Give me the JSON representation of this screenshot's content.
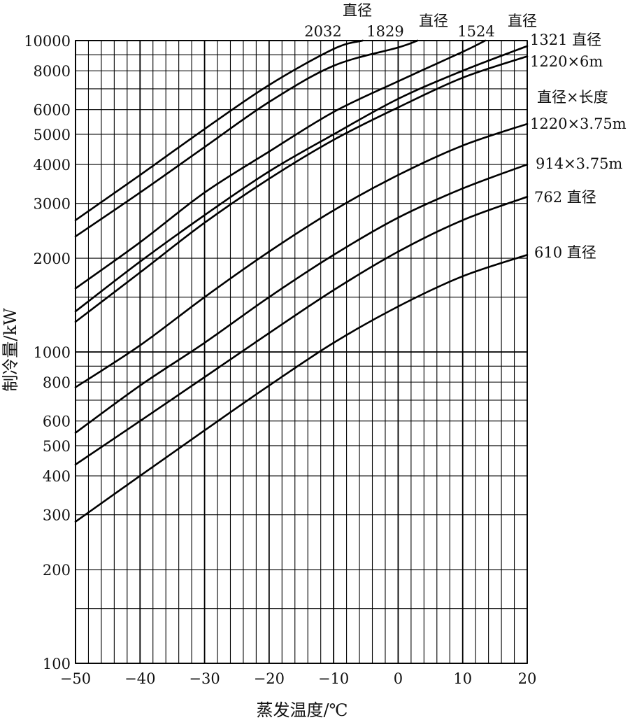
{
  "chart_data": {
    "type": "line",
    "title": "",
    "xlabel": "蒸发温度/℃",
    "ylabel": "制冷量/kW",
    "xlim": [
      -50,
      20
    ],
    "ylim": [
      100,
      10000
    ],
    "yscale": "log",
    "grid": true,
    "x_ticks": [
      -50,
      -40,
      -30,
      -20,
      -10,
      0,
      10,
      20
    ],
    "x_tick_labels": [
      "−50",
      "−40",
      "−30",
      "−20",
      "−10",
      "0",
      "10",
      "20"
    ],
    "y_ticks": [
      100,
      200,
      300,
      400,
      500,
      600,
      800,
      1000,
      2000,
      3000,
      4000,
      5000,
      6000,
      8000,
      10000
    ],
    "y_tick_labels": [
      "100",
      "200",
      "300",
      "400",
      "500",
      "600",
      "800",
      "1000",
      "2000",
      "3000",
      "4000",
      "5000",
      "6000",
      "8000",
      "10000"
    ],
    "legend_note": "直径×长度",
    "series": [
      {
        "name": "2032 直径",
        "x": [
          -50,
          -40,
          -30,
          -20,
          -10,
          -5.5
        ],
        "y": [
          2650,
          3700,
          5200,
          7200,
          9400,
          10000
        ]
      },
      {
        "name": "1829 直径",
        "x": [
          -50,
          -40,
          -30,
          -20,
          -10,
          0,
          3
        ],
        "y": [
          2350,
          3250,
          4550,
          6350,
          8300,
          9500,
          10000
        ]
      },
      {
        "name": "1524 直径",
        "x": [
          -50,
          -40,
          -30,
          -20,
          -10,
          0,
          10,
          13.5
        ],
        "y": [
          1600,
          2250,
          3250,
          4400,
          5900,
          7400,
          9200,
          10000
        ]
      },
      {
        "name": "1321 直径",
        "x": [
          -50,
          -40,
          -30,
          -20,
          -10,
          0,
          10,
          20
        ],
        "y": [
          1350,
          1950,
          2750,
          3800,
          5000,
          6500,
          8000,
          9600
        ]
      },
      {
        "name": "1220×6m",
        "x": [
          -50,
          -40,
          -30,
          -20,
          -10,
          0,
          10,
          20
        ],
        "y": [
          1250,
          1800,
          2600,
          3600,
          4800,
          6100,
          7600,
          8900
        ]
      },
      {
        "name": "1220×3.75m",
        "x": [
          -50,
          -40,
          -30,
          -20,
          -10,
          0,
          10,
          20
        ],
        "y": [
          770,
          1050,
          1500,
          2100,
          2850,
          3700,
          4600,
          5400
        ]
      },
      {
        "name": "914×3.75m",
        "x": [
          -50,
          -40,
          -30,
          -20,
          -10,
          0,
          10,
          20
        ],
        "y": [
          550,
          780,
          1070,
          1500,
          2050,
          2700,
          3350,
          4000
        ]
      },
      {
        "name": "762 直径",
        "x": [
          -50,
          -40,
          -30,
          -20,
          -10,
          0,
          10,
          20
        ],
        "y": [
          435,
          600,
          830,
          1150,
          1580,
          2100,
          2650,
          3150
        ]
      },
      {
        "name": "610 直径",
        "x": [
          -50,
          -40,
          -30,
          -20,
          -10,
          0,
          10,
          20
        ],
        "y": [
          285,
          400,
          560,
          780,
          1070,
          1400,
          1750,
          2050
        ]
      }
    ],
    "curve_labels": [
      {
        "text": "直径",
        "series": [
          "2032 直径",
          "1829 直径"
        ]
      },
      {
        "text": "2032",
        "series": [
          "2032 直径"
        ]
      },
      {
        "text": "1829",
        "series": [
          "1829 直径"
        ]
      },
      {
        "text": "直径",
        "series": [
          "1829 直径",
          "1524 直径"
        ]
      },
      {
        "text": "1524",
        "series": [
          "1524 直径"
        ]
      },
      {
        "text": "直径",
        "series": [
          "1524 直径",
          "1321 直径"
        ]
      },
      {
        "text": "1321 直径",
        "series": [
          "1321 直径"
        ]
      },
      {
        "text": "1220×6m",
        "series": [
          "1220×6m"
        ]
      },
      {
        "text": "1220×3.75m",
        "series": [
          "1220×3.75m"
        ]
      },
      {
        "text": "914×3.75m",
        "series": [
          "914×3.75m"
        ]
      },
      {
        "text": "762 直径",
        "series": [
          "762 直径"
        ]
      },
      {
        "text": "610 直径",
        "series": [
          "610 直径"
        ]
      }
    ]
  }
}
